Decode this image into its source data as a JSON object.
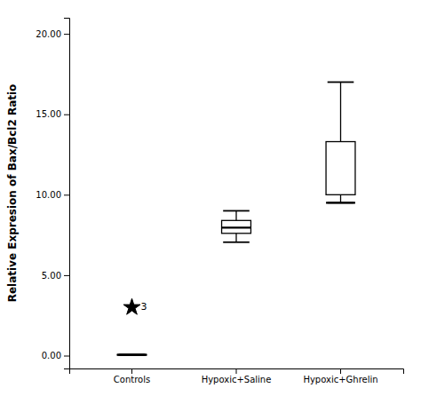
{
  "chart_data": {
    "type": "box",
    "ylabel": "Relative Expresion of Bax/Bcl2 Ratio",
    "categories": [
      "Controls",
      "Hypoxic+Saline",
      "Hypoxic+Ghrelin"
    ],
    "ylim": [
      -0.8,
      21.0
    ],
    "yticks": [
      {
        "value": 0.0,
        "label": "0.00"
      },
      {
        "value": 5.0,
        "label": "5.00"
      },
      {
        "value": 10.0,
        "label": "10.00"
      },
      {
        "value": 15.0,
        "label": "15.00"
      },
      {
        "value": 20.0,
        "label": "20.00"
      }
    ],
    "boxes": [
      {
        "median": 0.05,
        "q1": 0.03,
        "q3": 0.07,
        "whisker_low": 0.03,
        "whisker_high": 0.07,
        "outliers": [
          3.0
        ],
        "outlier_labels": [
          "3"
        ]
      },
      {
        "median": 7.95,
        "q1": 7.6,
        "q3": 8.4,
        "whisker_low": 7.05,
        "whisker_high": 9.0,
        "outliers": [],
        "outlier_labels": []
      },
      {
        "median": 9.5,
        "q1": 10.0,
        "q3": 13.3,
        "whisker_low": 9.5,
        "whisker_high": 17.0,
        "outliers": [],
        "outlier_labels": []
      }
    ],
    "color": "#000000",
    "marker": "star",
    "grid": false
  }
}
